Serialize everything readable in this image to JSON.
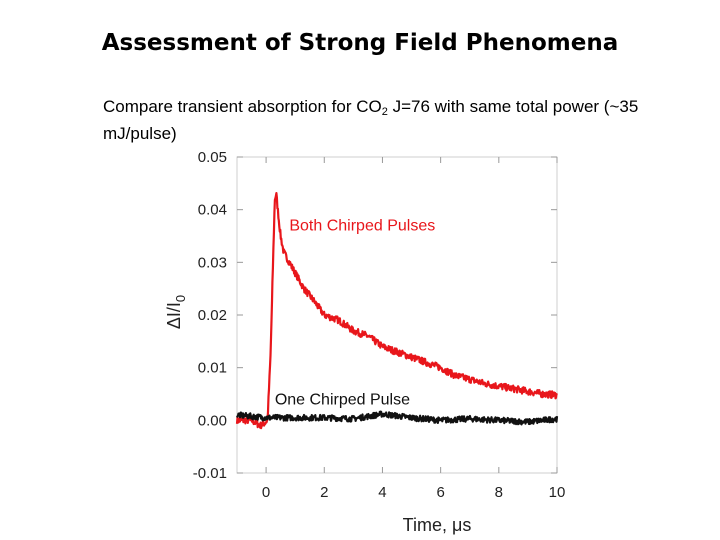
{
  "slide": {
    "title": "Assessment of Strong Field Phenomena",
    "subtitle": {
      "pre": "Compare transient absorption for CO",
      "sub": "2",
      "post": " J=76 with same total power (~35 mJ/pulse)"
    }
  },
  "colors": {
    "red": "#e8161b",
    "black": "#111111"
  },
  "chart_data": {
    "type": "line",
    "title": "",
    "xlabel": "Time, μs",
    "ylabel": "ΔI/I₀",
    "ylabel_parts": {
      "main": "ΔI/I",
      "sub": "0"
    },
    "xlim": [
      -1,
      10
    ],
    "ylim": [
      -0.01,
      0.05
    ],
    "xticks": [
      0,
      2,
      4,
      6,
      8,
      10
    ],
    "yticks": [
      -0.01,
      0.0,
      0.01,
      0.02,
      0.03,
      0.04,
      0.05
    ],
    "xtick_labels": [
      "0",
      "2",
      "4",
      "6",
      "8",
      "10"
    ],
    "ytick_labels": [
      "-0.01",
      "0.00",
      "0.01",
      "0.02",
      "0.03",
      "0.04",
      "0.05"
    ],
    "grid": false,
    "series": [
      {
        "name": "Both Chirped Pulses",
        "color": "#e8161b",
        "x": [
          -1.0,
          -0.5,
          -0.2,
          -0.05,
          0.05,
          0.15,
          0.25,
          0.3,
          0.35,
          0.4,
          0.5,
          0.6,
          0.8,
          1.0,
          1.3,
          1.6,
          2.0,
          2.5,
          3.0,
          3.5,
          4.0,
          4.5,
          5.0,
          5.5,
          6.0,
          6.5,
          7.0,
          7.5,
          8.0,
          8.5,
          9.0,
          9.5,
          10.0
        ],
        "y": [
          0.0,
          0.0,
          -0.001,
          -0.0005,
          0.0,
          0.012,
          0.032,
          0.042,
          0.043,
          0.04,
          0.035,
          0.032,
          0.03,
          0.028,
          0.025,
          0.023,
          0.02,
          0.019,
          0.017,
          0.016,
          0.014,
          0.013,
          0.012,
          0.011,
          0.01,
          0.0085,
          0.0078,
          0.007,
          0.0065,
          0.006,
          0.0055,
          0.005,
          0.0048
        ]
      },
      {
        "name": "One Chirped Pulse",
        "color": "#111111",
        "x": [
          -1.0,
          0.0,
          1.0,
          2.0,
          3.0,
          4.0,
          5.0,
          6.0,
          7.0,
          8.0,
          9.0,
          10.0
        ],
        "y": [
          0.001,
          0.0005,
          0.0005,
          0.0005,
          0.0003,
          0.0012,
          0.0005,
          0.0,
          0.0003,
          0.0,
          -0.0003,
          0.0003
        ]
      }
    ],
    "annotations": [
      {
        "text": "Both Chirped Pulses",
        "x": 0.8,
        "y": 0.036,
        "color": "#e8161b"
      },
      {
        "text": "One Chirped Pulse",
        "x": 0.3,
        "y": 0.003,
        "color": "#111111"
      }
    ]
  }
}
